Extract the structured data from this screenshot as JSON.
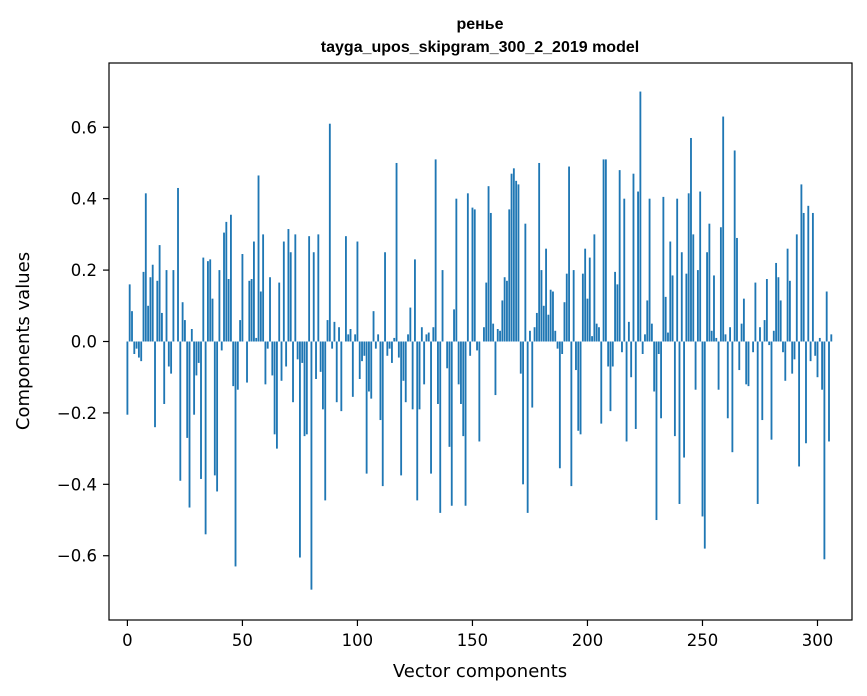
{
  "chart_data": {
    "type": "bar",
    "title": "ренье",
    "subtitle": "tayga_upos_skipgram_300_2_2019 model",
    "xlabel": "Vector components",
    "ylabel": "Components values",
    "xlim": [
      -8,
      315
    ],
    "ylim": [
      -0.78,
      0.78
    ],
    "x_ticks": [
      0,
      50,
      100,
      150,
      200,
      250,
      300
    ],
    "y_ticks": [
      -0.6,
      -0.4,
      -0.2,
      0.0,
      0.2,
      0.4,
      0.6
    ],
    "y_tick_labels": [
      "−0.6",
      "−0.4",
      "−0.2",
      "0.0",
      "0.2",
      "0.4",
      "0.6"
    ],
    "bar_color": "#1f77b4",
    "values": [
      -0.205,
      0.16,
      0.085,
      -0.035,
      -0.02,
      -0.045,
      -0.055,
      0.195,
      0.415,
      0.1,
      0.18,
      0.215,
      -0.24,
      0.17,
      0.27,
      0.08,
      -0.175,
      0.2,
      -0.07,
      -0.09,
      0.2,
      0.0,
      0.43,
      -0.39,
      0.11,
      0.06,
      -0.27,
      -0.465,
      0.035,
      -0.205,
      -0.095,
      -0.06,
      -0.385,
      0.235,
      -0.54,
      0.225,
      0.23,
      0.12,
      -0.375,
      -0.42,
      0.2,
      -0.025,
      0.305,
      0.335,
      0.175,
      0.355,
      -0.125,
      -0.63,
      -0.135,
      0.06,
      0.245,
      0.0,
      -0.115,
      0.17,
      0.175,
      0.28,
      0.01,
      0.465,
      0.14,
      0.3,
      -0.12,
      -0.02,
      0.18,
      -0.095,
      -0.26,
      -0.3,
      0.165,
      -0.11,
      0.28,
      -0.07,
      0.315,
      0.25,
      -0.17,
      0.3,
      -0.05,
      -0.605,
      -0.06,
      -0.265,
      -0.26,
      0.295,
      -0.695,
      0.25,
      -0.105,
      0.3,
      -0.085,
      -0.19,
      -0.445,
      0.06,
      0.61,
      -0.02,
      0.055,
      -0.17,
      0.04,
      -0.195,
      0.0,
      0.295,
      0.02,
      0.035,
      -0.155,
      0.02,
      0.28,
      -0.105,
      -0.055,
      -0.04,
      -0.37,
      -0.14,
      -0.16,
      0.085,
      -0.02,
      0.02,
      -0.22,
      -0.405,
      0.25,
      -0.04,
      -0.02,
      -0.06,
      0.01,
      0.5,
      -0.045,
      -0.375,
      -0.11,
      -0.17,
      0.02,
      0.095,
      -0.19,
      0.23,
      -0.445,
      -0.19,
      0.04,
      -0.12,
      0.02,
      0.025,
      -0.37,
      0.04,
      0.51,
      -0.175,
      -0.48,
      0.2,
      0.0,
      -0.075,
      -0.295,
      -0.46,
      0.09,
      0.4,
      -0.12,
      -0.175,
      -0.265,
      -0.46,
      0.415,
      -0.04,
      0.375,
      0.37,
      -0.025,
      -0.28,
      0.0,
      0.04,
      0.165,
      0.435,
      0.36,
      0.05,
      -0.15,
      0.035,
      0.03,
      0.115,
      0.18,
      0.17,
      0.37,
      0.47,
      0.485,
      0.45,
      0.44,
      -0.09,
      -0.4,
      0.33,
      -0.48,
      0.03,
      -0.185,
      0.04,
      0.08,
      0.5,
      0.2,
      0.1,
      0.26,
      0.075,
      0.145,
      0.14,
      0.03,
      -0.02,
      -0.355,
      -0.035,
      0.11,
      0.19,
      0.49,
      -0.405,
      0.2,
      -0.08,
      -0.25,
      -0.26,
      0.19,
      0.26,
      0.12,
      0.235,
      0.015,
      0.3,
      0.05,
      0.04,
      -0.23,
      0.51,
      0.51,
      -0.07,
      -0.195,
      -0.07,
      0.195,
      0.16,
      0.48,
      -0.03,
      0.4,
      -0.28,
      0.055,
      -0.1,
      0.47,
      -0.245,
      0.42,
      0.7,
      -0.035,
      0.02,
      0.115,
      0.4,
      0.05,
      -0.14,
      -0.5,
      -0.035,
      -0.215,
      0.405,
      0.125,
      0.025,
      0.28,
      0.185,
      -0.265,
      0.4,
      -0.455,
      0.25,
      -0.325,
      0.19,
      0.415,
      0.57,
      0.3,
      -0.135,
      0.2,
      0.42,
      -0.49,
      -0.58,
      0.25,
      0.33,
      0.03,
      0.185,
      0.01,
      -0.135,
      0.32,
      0.63,
      0.02,
      -0.215,
      0.04,
      -0.31,
      0.535,
      0.29,
      -0.08,
      0.05,
      0.12,
      -0.12,
      -0.125,
      0.0,
      -0.03,
      0.165,
      -0.455,
      0.04,
      -0.22,
      0.06,
      0.175,
      -0.01,
      -0.275,
      0.03,
      0.22,
      0.18,
      0.115,
      -0.03,
      -0.11,
      0.26,
      0.17,
      -0.09,
      -0.05,
      0.3,
      -0.35,
      0.44,
      0.36,
      -0.285,
      0.38,
      -0.055,
      0.36,
      -0.04,
      -0.1,
      0.01,
      -0.135,
      -0.61,
      0.14,
      -0.28,
      0.02
    ]
  }
}
